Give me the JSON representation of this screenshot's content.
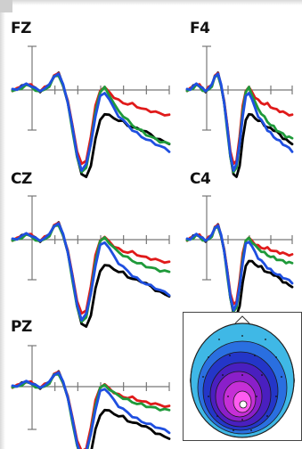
{
  "channels": [
    {
      "id": "fz",
      "label": "FZ"
    },
    {
      "id": "f4",
      "label": "F4"
    },
    {
      "id": "cz",
      "label": "CZ"
    },
    {
      "id": "c4",
      "label": "C4"
    },
    {
      "id": "pz",
      "label": "PZ"
    }
  ],
  "series_colors": [
    "#000000",
    "#e01a1a",
    "#1f9a3a",
    "#1f4fe0"
  ],
  "chart_data": {
    "type": "line",
    "title": "",
    "xlabel": "",
    "ylabel": "",
    "grid": false,
    "series": [
      {
        "color": "#000000",
        "values": [
          0,
          1,
          3,
          5,
          4,
          1,
          -1,
          2,
          4,
          12,
          14,
          4,
          -10,
          -32,
          -56,
          -72,
          -75,
          -64,
          -42,
          -26,
          -20,
          -22,
          -24,
          -26,
          -27,
          -30,
          -32,
          -33,
          -34,
          -36,
          -38,
          -41,
          -43,
          -44,
          -46
        ]
      },
      {
        "color": "#e01a1a",
        "values": [
          0,
          1,
          3,
          5,
          4,
          1,
          -1,
          2,
          4,
          12,
          14,
          4,
          -10,
          -30,
          -52,
          -64,
          -60,
          -40,
          -14,
          0,
          2,
          -2,
          -6,
          -9,
          -11,
          -12,
          -12,
          -14,
          -16,
          -17,
          -18,
          -19,
          -20,
          -21,
          -22
        ]
      },
      {
        "color": "#1f9a3a",
        "values": [
          -1,
          0,
          2,
          4,
          3,
          0,
          -2,
          1,
          3,
          11,
          13,
          3,
          -11,
          -34,
          -58,
          -70,
          -66,
          -46,
          -18,
          -2,
          2,
          -4,
          -12,
          -18,
          -22,
          -26,
          -30,
          -33,
          -35,
          -38,
          -40,
          -42,
          -44,
          -45,
          -46
        ]
      },
      {
        "color": "#1f4fe0",
        "values": [
          0,
          1,
          3,
          5,
          4,
          1,
          -1,
          2,
          4,
          12,
          14,
          4,
          -10,
          -32,
          -56,
          -68,
          -64,
          -46,
          -22,
          -6,
          -2,
          -8,
          -16,
          -22,
          -26,
          -30,
          -34,
          -37,
          -40,
          -42,
          -44,
          -46,
          -48,
          -50,
          -52
        ]
      }
    ]
  },
  "topomap": {
    "colors": [
      "#3fb8e6",
      "#2a6fe0",
      "#2436c8",
      "#4a1fbf",
      "#8a1fc9",
      "#c52fd6",
      "#ff5cf0",
      "#ffffff"
    ]
  }
}
